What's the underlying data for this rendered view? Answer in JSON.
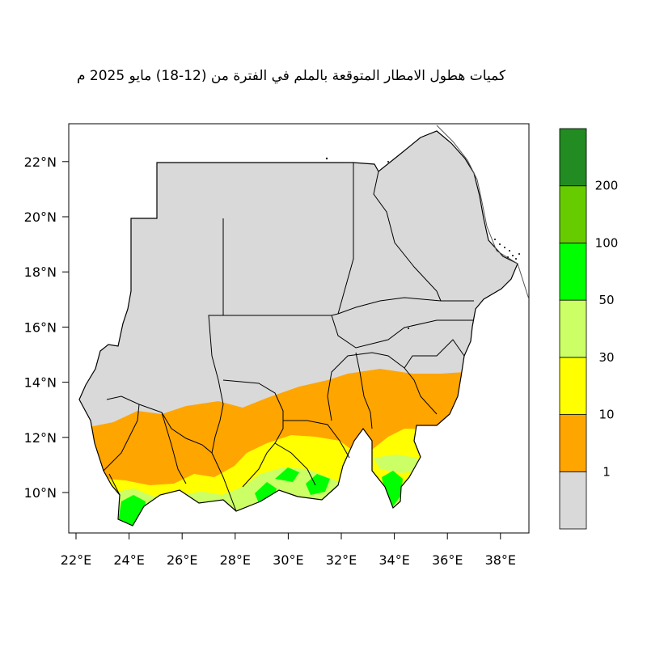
{
  "title": "كميات هطول الامطار المتوقعة بالملم في الفترة من (12-18) مايو 2025 م",
  "colors": {
    "land": "#d9d9d9",
    "border": "#000000",
    "c1": "#ffa500",
    "c10": "#ffff00",
    "c30": "#ccff66",
    "c50": "#00ff00",
    "c100": "#66cc00",
    "c200": "#228b22"
  },
  "axes": {
    "x_ticks": [
      "22°E",
      "24°E",
      "26°E",
      "28°E",
      "30°E",
      "32°E",
      "34°E",
      "36°E",
      "38°E"
    ],
    "y_ticks": [
      "10°N",
      "12°N",
      "14°N",
      "16°N",
      "18°N",
      "20°N",
      "22°N"
    ]
  },
  "legend": {
    "labels": [
      "1",
      "10",
      "30",
      "50",
      "100",
      "200"
    ],
    "bands": [
      {
        "color": "#d9d9d9",
        "range": "<1"
      },
      {
        "color": "#ffa500",
        "range": "1-10"
      },
      {
        "color": "#ffff00",
        "range": "10-30"
      },
      {
        "color": "#ccff66",
        "range": "30-50"
      },
      {
        "color": "#00ff00",
        "range": "50-100"
      },
      {
        "color": "#66cc00",
        "range": "100-200"
      },
      {
        "color": "#228b22",
        "range": ">200"
      }
    ]
  }
}
